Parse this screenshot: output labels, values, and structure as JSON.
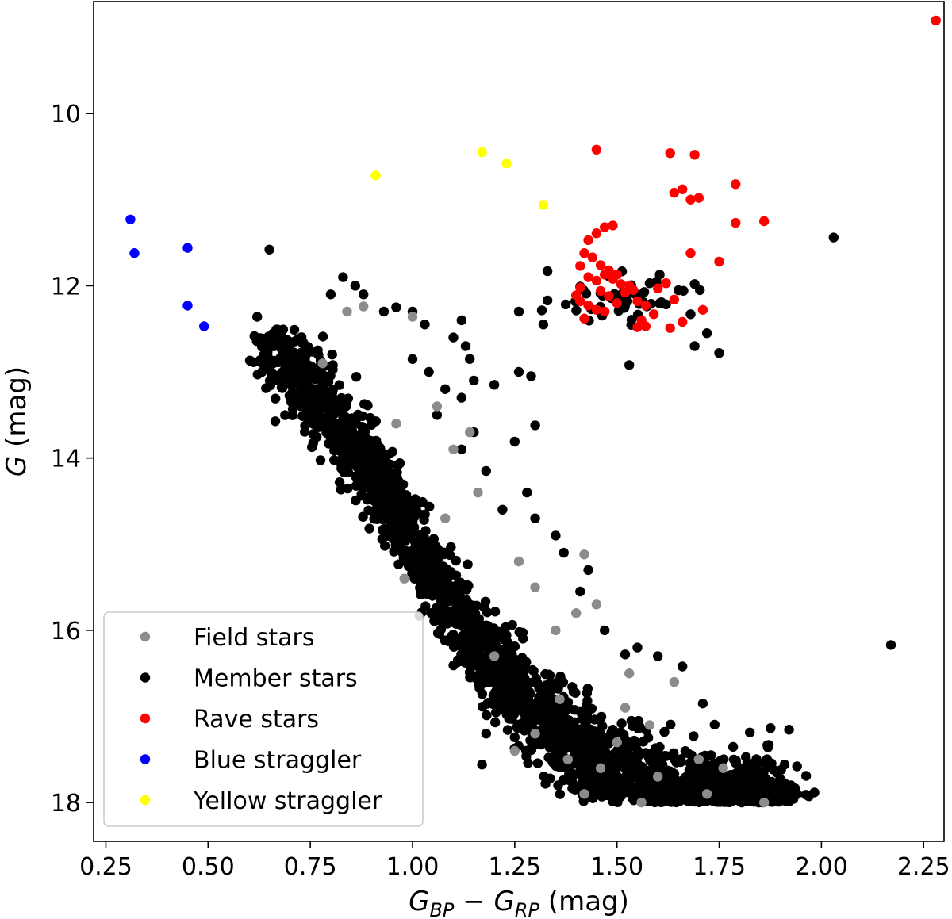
{
  "chart_data": {
    "type": "scatter",
    "xlabel": {
      "base": "G",
      "sub1": "BP",
      "minus": " − ",
      "base2": "G",
      "sub2": "RP",
      "unit": " (mag)"
    },
    "ylabel": {
      "main": "G",
      "unit": " (mag)"
    },
    "xlim": [
      0.22,
      2.3
    ],
    "ylim": [
      18.45,
      8.7
    ],
    "y_inverted": true,
    "xticks": [
      0.25,
      0.5,
      0.75,
      1.0,
      1.25,
      1.5,
      1.75,
      2.0,
      2.25
    ],
    "xtick_labels": [
      "0.25",
      "0.50",
      "0.75",
      "1.00",
      "1.25",
      "1.50",
      "1.75",
      "2.00",
      "2.25"
    ],
    "yticks": [
      10,
      12,
      14,
      16,
      18
    ],
    "ytick_labels": [
      "10",
      "12",
      "14",
      "16",
      "18"
    ],
    "grid": false,
    "legend_position": "bottom-left",
    "series": [
      {
        "name": "Field stars",
        "color": "#8c8c8c",
        "points": [
          [
            0.84,
            12.3
          ],
          [
            0.88,
            12.24
          ],
          [
            1.0,
            12.36
          ],
          [
            1.06,
            13.4
          ],
          [
            1.16,
            14.4
          ],
          [
            1.1,
            13.9
          ],
          [
            1.42,
            15.12
          ],
          [
            1.45,
            15.7
          ],
          [
            1.35,
            16.0
          ],
          [
            1.53,
            16.5
          ],
          [
            1.64,
            16.6
          ],
          [
            1.25,
            17.4
          ],
          [
            1.42,
            17.9
          ],
          [
            1.46,
            17.6
          ],
          [
            1.38,
            17.5
          ],
          [
            1.6,
            17.7
          ],
          [
            1.72,
            17.9
          ],
          [
            1.86,
            18.0
          ],
          [
            1.56,
            18.0
          ],
          [
            1.3,
            17.2
          ],
          [
            1.7,
            17.5
          ],
          [
            1.5,
            17.3
          ],
          [
            1.2,
            16.3
          ],
          [
            0.98,
            15.4
          ],
          [
            1.08,
            14.7
          ],
          [
            1.4,
            15.8
          ],
          [
            1.26,
            15.2
          ],
          [
            1.36,
            16.8
          ],
          [
            1.58,
            17.1
          ],
          [
            1.76,
            17.6
          ],
          [
            0.78,
            12.9
          ],
          [
            0.96,
            13.6
          ],
          [
            1.14,
            13.7
          ],
          [
            1.3,
            15.5
          ],
          [
            1.52,
            16.9
          ]
        ]
      },
      {
        "name": "Member stars",
        "color": "#000000",
        "points": []
      },
      {
        "name": "Rave stars",
        "color": "#ff0000",
        "points": [
          [
            2.28,
            8.92
          ],
          [
            1.45,
            10.42
          ],
          [
            1.63,
            10.46
          ],
          [
            1.69,
            10.48
          ],
          [
            1.79,
            10.82
          ],
          [
            1.64,
            10.92
          ],
          [
            1.66,
            10.88
          ],
          [
            1.68,
            11.0
          ],
          [
            1.7,
            10.98
          ],
          [
            1.79,
            11.27
          ],
          [
            1.86,
            11.25
          ],
          [
            1.47,
            11.32
          ],
          [
            1.49,
            11.3
          ],
          [
            1.45,
            11.39
          ],
          [
            1.43,
            11.47
          ],
          [
            1.68,
            11.62
          ],
          [
            1.75,
            11.72
          ],
          [
            1.42,
            11.62
          ],
          [
            1.44,
            11.67
          ],
          [
            1.46,
            11.76
          ],
          [
            1.48,
            11.82
          ],
          [
            1.5,
            11.87
          ],
          [
            1.41,
            11.77
          ],
          [
            1.43,
            11.9
          ],
          [
            1.45,
            11.94
          ],
          [
            1.47,
            11.87
          ],
          [
            1.49,
            11.92
          ],
          [
            1.51,
            11.98
          ],
          [
            1.53,
            12.0
          ],
          [
            1.41,
            12.02
          ],
          [
            1.46,
            12.06
          ],
          [
            1.48,
            12.12
          ],
          [
            1.52,
            12.08
          ],
          [
            1.54,
            12.05
          ],
          [
            1.55,
            12.18
          ],
          [
            1.57,
            12.23
          ],
          [
            1.6,
            12.03
          ],
          [
            1.62,
            11.97
          ],
          [
            1.64,
            12.16
          ],
          [
            1.59,
            12.33
          ],
          [
            1.43,
            12.23
          ],
          [
            1.45,
            12.28
          ],
          [
            1.47,
            12.3
          ],
          [
            1.42,
            12.38
          ],
          [
            1.56,
            12.4
          ],
          [
            1.55,
            12.48
          ],
          [
            1.57,
            12.47
          ],
          [
            1.63,
            12.49
          ],
          [
            1.66,
            12.42
          ],
          [
            1.71,
            12.28
          ],
          [
            1.41,
            12.18
          ],
          [
            1.4,
            12.11
          ],
          [
            1.5,
            12.2
          ]
        ]
      },
      {
        "name": "Blue straggler",
        "color": "#0000ff",
        "points": [
          [
            0.31,
            11.23
          ],
          [
            0.32,
            11.62
          ],
          [
            0.45,
            11.56
          ],
          [
            0.45,
            12.23
          ],
          [
            0.49,
            12.47
          ]
        ]
      },
      {
        "name": "Yellow straggler",
        "color": "#ffff00",
        "points": [
          [
            1.17,
            10.45
          ],
          [
            1.23,
            10.58
          ],
          [
            0.91,
            10.72
          ],
          [
            1.32,
            11.06
          ]
        ]
      }
    ],
    "member_extra_points": [
      [
        0.65,
        11.58
      ],
      [
        0.62,
        12.36
      ],
      [
        0.8,
        12.1
      ],
      [
        0.83,
        11.9
      ],
      [
        0.86,
        12.0
      ],
      [
        0.88,
        12.1
      ],
      [
        0.93,
        12.3
      ],
      [
        0.96,
        12.25
      ],
      [
        1.0,
        12.3
      ],
      [
        1.03,
        12.45
      ],
      [
        1.1,
        12.6
      ],
      [
        1.12,
        12.4
      ],
      [
        1.13,
        12.7
      ],
      [
        1.14,
        12.85
      ],
      [
        1.15,
        13.1
      ],
      [
        1.12,
        13.3
      ],
      [
        1.2,
        13.15
      ],
      [
        1.26,
        13.0
      ],
      [
        1.29,
        13.05
      ],
      [
        1.3,
        13.62
      ],
      [
        1.25,
        13.81
      ],
      [
        1.32,
        12.45
      ],
      [
        1.33,
        12.17
      ],
      [
        1.33,
        11.83
      ],
      [
        1.26,
        12.3
      ],
      [
        1.53,
        12.92
      ],
      [
        2.03,
        11.44
      ],
      [
        2.17,
        16.17
      ],
      [
        1.69,
        11.98
      ],
      [
        1.72,
        12.55
      ],
      [
        1.69,
        12.7
      ],
      [
        1.75,
        12.78
      ],
      [
        1.58,
        11.97
      ],
      [
        1.68,
        12.33
      ],
      [
        1.17,
        17.56
      ],
      [
        1.18,
        17.2
      ],
      [
        1.9,
        17.96
      ],
      [
        1.91,
        17.56
      ],
      [
        1.85,
        17.65
      ],
      [
        1.88,
        17.85
      ],
      [
        1.82,
        17.7
      ],
      [
        1.8,
        17.6
      ],
      [
        1.73,
        17.45
      ],
      [
        1.71,
        16.85
      ],
      [
        1.66,
        16.42
      ],
      [
        1.6,
        16.3
      ],
      [
        1.55,
        16.2
      ],
      [
        1.52,
        16.28
      ],
      [
        1.47,
        16.0
      ],
      [
        1.43,
        15.3
      ],
      [
        1.41,
        15.55
      ],
      [
        1.37,
        15.1
      ],
      [
        1.35,
        14.9
      ],
      [
        1.3,
        14.7
      ],
      [
        1.28,
        14.4
      ],
      [
        1.22,
        14.6
      ],
      [
        1.18,
        14.15
      ],
      [
        1.15,
        13.7
      ],
      [
        1.12,
        13.9
      ],
      [
        1.06,
        13.5
      ],
      [
        1.08,
        13.2
      ],
      [
        1.04,
        13.0
      ],
      [
        1.0,
        12.85
      ]
    ],
    "member_distribution": {
      "band": [
        [
          0.65,
          12.75
        ],
        [
          0.7,
          12.9
        ],
        [
          0.75,
          13.2
        ],
        [
          0.8,
          13.5
        ],
        [
          0.85,
          13.85
        ],
        [
          0.9,
          14.2
        ],
        [
          0.95,
          14.55
        ],
        [
          1.0,
          14.95
        ],
        [
          1.05,
          15.35
        ],
        [
          1.1,
          15.75
        ],
        [
          1.15,
          16.1
        ],
        [
          1.2,
          16.4
        ],
        [
          1.25,
          16.7
        ],
        [
          1.3,
          16.95
        ],
        [
          1.35,
          17.15
        ],
        [
          1.4,
          17.35
        ],
        [
          1.45,
          17.55
        ],
        [
          1.5,
          17.7
        ],
        [
          1.55,
          17.82
        ],
        [
          1.6,
          17.9
        ],
        [
          1.65,
          17.95
        ]
      ],
      "upper_offset": 0.55,
      "lower_offset": 0.7,
      "count": 2600,
      "seed": 7,
      "clump_center": [
        1.52,
        12.15
      ],
      "clump_count": 45
    }
  }
}
